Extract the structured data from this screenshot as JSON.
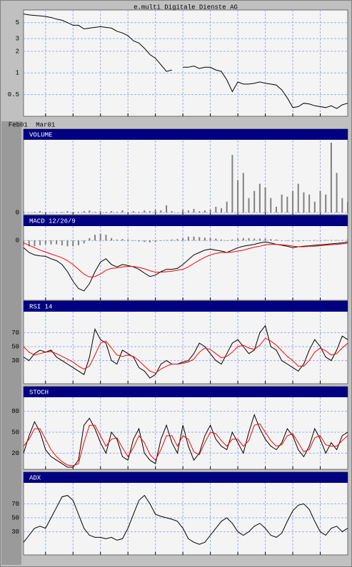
{
  "chart_data": [
    {
      "type": "line",
      "title": "e.multi Digitale Dienste AG",
      "log_scale": true,
      "grid": true,
      "x": [
        0,
        1,
        2,
        3,
        4,
        5,
        6,
        7,
        8,
        9,
        10,
        11,
        12,
        13,
        14,
        15,
        16,
        17,
        18,
        19,
        20,
        21,
        22,
        23,
        24,
        25,
        26,
        27,
        28,
        29,
        30,
        31,
        32,
        33,
        34,
        35,
        36,
        37,
        38,
        39,
        40,
        41,
        42,
        43,
        44,
        45,
        46,
        47,
        48,
        49,
        50,
        51,
        52,
        53,
        54,
        55,
        56,
        57,
        58,
        59
      ],
      "xlim": [
        0,
        59
      ],
      "xticks": [
        {
          "value": -1,
          "label": "Feb01"
        },
        {
          "value": 4,
          "label": "Mar01"
        },
        {
          "value": 9,
          "label": null
        },
        {
          "value": 14,
          "label": null
        },
        {
          "value": 19,
          "label": null
        },
        {
          "value": 24,
          "label": null
        },
        {
          "value": 29,
          "label": null
        },
        {
          "value": 34,
          "label": null
        },
        {
          "value": 39,
          "label": null
        },
        {
          "value": 44,
          "label": null
        },
        {
          "value": 49,
          "label": null
        },
        {
          "value": 54,
          "label": null
        }
      ],
      "ylim": [
        0.25,
        7.5
      ],
      "yticks": [
        0.5,
        1,
        2,
        3,
        5
      ],
      "series": [
        {
          "color": "#000000",
          "values": [
            6.6,
            6.4,
            6.3,
            6.2,
            6.1,
            5.9,
            5.6,
            5.4,
            5.0,
            4.6,
            4.6,
            4.1,
            4.2,
            4.3,
            4.4,
            4.3,
            4.2,
            3.8,
            3.6,
            3.3,
            2.8,
            2.6,
            2.2,
            1.8,
            1.6,
            1.3,
            1.05,
            1.1,
            null,
            1.2,
            1.2,
            1.25,
            1.15,
            1.2,
            1.2,
            1.1,
            1.05,
            0.8,
            0.55,
            0.75,
            0.7,
            0.7,
            0.72,
            0.75,
            0.72,
            0.7,
            0.68,
            0.58,
            0.45,
            0.33,
            0.34,
            0.38,
            0.37,
            0.35,
            0.34,
            0.33,
            0.35,
            0.32,
            0.36,
            0.38
          ]
        }
      ]
    },
    {
      "type": "bar",
      "title": "VOLUME",
      "ylim": [
        0,
        100
      ],
      "yticks": [
        0
      ],
      "grid": true,
      "color": "#808080",
      "values": [
        1,
        0,
        1,
        2,
        1,
        0,
        1,
        1,
        2,
        1,
        1,
        2,
        3,
        1,
        2,
        1,
        2,
        1,
        3,
        1,
        2,
        1,
        3,
        2,
        4,
        3,
        10,
        2,
        0,
        4,
        3,
        5,
        2,
        3,
        4,
        8,
        6,
        15,
        80,
        45,
        55,
        20,
        30,
        40,
        35,
        20,
        8,
        25,
        22,
        30,
        40,
        28,
        25,
        15,
        30,
        25,
        97,
        55,
        20,
        15
      ]
    },
    {
      "type": "line",
      "title": "MACD 12/26/9",
      "ylim": [
        -1.2,
        0.3
      ],
      "yticks": [
        0
      ],
      "grid": true,
      "series": [
        {
          "color": "#808080",
          "style": "bar",
          "values": [
            -0.1,
            -0.12,
            -0.12,
            -0.1,
            -0.08,
            -0.08,
            -0.08,
            -0.1,
            -0.12,
            -0.12,
            -0.1,
            -0.06,
            0.05,
            0.12,
            0.14,
            0.12,
            0.05,
            0.02,
            0.03,
            0.02,
            0.0,
            -0.02,
            -0.03,
            -0.04,
            -0.03,
            -0.01,
            0.01,
            0.02,
            0.03,
            0.05,
            0.08,
            0.08,
            0.07,
            0.06,
            0.05,
            0.04,
            0.02,
            0.0,
            0.02,
            0.04,
            0.05,
            0.05,
            0.04,
            0.04,
            0.04,
            0.03,
            0.02,
            0.0,
            -0.01,
            -0.02,
            -0.02,
            -0.01,
            0.0,
            0.01,
            0.01,
            0.01,
            0.01,
            0.01,
            0.01,
            0.02
          ]
        },
        {
          "color": "#000000",
          "values": [
            -0.15,
            -0.25,
            -0.3,
            -0.32,
            -0.33,
            -0.38,
            -0.42,
            -0.5,
            -0.65,
            -0.85,
            -1.0,
            -1.05,
            -0.9,
            -0.65,
            -0.45,
            -0.38,
            -0.5,
            -0.55,
            -0.5,
            -0.52,
            -0.55,
            -0.6,
            -0.68,
            -0.75,
            -0.72,
            -0.65,
            -0.6,
            -0.6,
            -0.58,
            -0.5,
            -0.4,
            -0.3,
            -0.25,
            -0.2,
            -0.18,
            -0.2,
            -0.22,
            -0.25,
            -0.2,
            -0.15,
            -0.12,
            -0.1,
            -0.08,
            -0.05,
            -0.03,
            -0.05,
            -0.08,
            -0.1,
            -0.12,
            -0.15,
            -0.13,
            -0.12,
            -0.11,
            -0.1,
            -0.09,
            -0.08,
            -0.07,
            -0.06,
            -0.05,
            -0.03
          ]
        },
        {
          "color": "#ff0000",
          "values": [
            -0.05,
            -0.1,
            -0.15,
            -0.2,
            -0.24,
            -0.28,
            -0.32,
            -0.36,
            -0.42,
            -0.5,
            -0.6,
            -0.7,
            -0.76,
            -0.75,
            -0.7,
            -0.62,
            -0.58,
            -0.57,
            -0.55,
            -0.54,
            -0.54,
            -0.56,
            -0.59,
            -0.63,
            -0.66,
            -0.66,
            -0.65,
            -0.64,
            -0.62,
            -0.6,
            -0.55,
            -0.48,
            -0.41,
            -0.35,
            -0.3,
            -0.27,
            -0.25,
            -0.25,
            -0.24,
            -0.22,
            -0.2,
            -0.17,
            -0.14,
            -0.12,
            -0.09,
            -0.08,
            -0.08,
            -0.09,
            -0.1,
            -0.12,
            -0.13,
            -0.13,
            -0.12,
            -0.12,
            -0.11,
            -0.1,
            -0.09,
            -0.08,
            -0.07,
            -0.06
          ]
        }
      ]
    },
    {
      "type": "line",
      "title": "RSI 14",
      "ylim": [
        0,
        100
      ],
      "yticks": [
        30,
        50,
        70
      ],
      "grid": true,
      "series": [
        {
          "color": "#000000",
          "values": [
            35,
            30,
            40,
            45,
            42,
            45,
            35,
            30,
            25,
            20,
            15,
            10,
            35,
            75,
            60,
            55,
            30,
            25,
            45,
            40,
            35,
            20,
            15,
            5,
            10,
            25,
            30,
            25,
            25,
            28,
            30,
            40,
            55,
            50,
            40,
            30,
            25,
            40,
            55,
            60,
            50,
            40,
            45,
            70,
            80,
            50,
            45,
            30,
            25,
            20,
            15,
            25,
            45,
            60,
            50,
            35,
            30,
            45,
            65,
            60
          ]
        },
        {
          "color": "#ff0000",
          "values": [
            50,
            42,
            38,
            40,
            42,
            43,
            40,
            36,
            32,
            28,
            22,
            18,
            22,
            38,
            55,
            58,
            48,
            38,
            36,
            38,
            36,
            30,
            22,
            15,
            12,
            18,
            22,
            25,
            25,
            26,
            28,
            32,
            42,
            48,
            46,
            40,
            34,
            36,
            42,
            50,
            52,
            48,
            46,
            52,
            62,
            58,
            52,
            44,
            36,
            30,
            22,
            22,
            30,
            42,
            48,
            44,
            38,
            40,
            48,
            55
          ]
        }
      ]
    },
    {
      "type": "line",
      "title": "STOCH",
      "ylim": [
        0,
        100
      ],
      "yticks": [
        20,
        50,
        80
      ],
      "grid": true,
      "series": [
        {
          "color": "#000000",
          "values": [
            20,
            45,
            65,
            50,
            25,
            15,
            10,
            5,
            0,
            0,
            10,
            60,
            70,
            55,
            35,
            20,
            50,
            40,
            15,
            10,
            40,
            55,
            20,
            10,
            5,
            40,
            60,
            35,
            20,
            60,
            30,
            10,
            20,
            45,
            60,
            40,
            30,
            25,
            50,
            35,
            20,
            50,
            75,
            55,
            40,
            30,
            25,
            35,
            55,
            45,
            25,
            15,
            30,
            55,
            40,
            20,
            35,
            25,
            45,
            50
          ]
        },
        {
          "color": "#ff0000",
          "values": [
            30,
            40,
            55,
            55,
            40,
            25,
            15,
            8,
            3,
            2,
            5,
            35,
            60,
            60,
            45,
            30,
            40,
            42,
            28,
            15,
            28,
            45,
            35,
            18,
            10,
            25,
            45,
            45,
            30,
            45,
            40,
            22,
            18,
            35,
            50,
            48,
            38,
            30,
            40,
            40,
            30,
            38,
            60,
            62,
            50,
            38,
            30,
            32,
            45,
            48,
            35,
            22,
            25,
            42,
            45,
            32,
            30,
            30,
            38,
            45
          ]
        }
      ]
    },
    {
      "type": "line",
      "title": "ADX",
      "ylim": [
        0,
        100
      ],
      "yticks": [
        30,
        50,
        70
      ],
      "grid": true,
      "series": [
        {
          "color": "#000000",
          "values": [
            15,
            25,
            35,
            38,
            35,
            50,
            65,
            80,
            82,
            75,
            55,
            35,
            25,
            22,
            22,
            20,
            22,
            18,
            20,
            35,
            55,
            75,
            82,
            70,
            55,
            52,
            50,
            48,
            45,
            35,
            20,
            15,
            12,
            15,
            25,
            35,
            45,
            50,
            42,
            30,
            25,
            30,
            38,
            42,
            35,
            25,
            22,
            28,
            45,
            60,
            68,
            70,
            62,
            45,
            30,
            25,
            35,
            38,
            30,
            35
          ]
        }
      ]
    }
  ]
}
